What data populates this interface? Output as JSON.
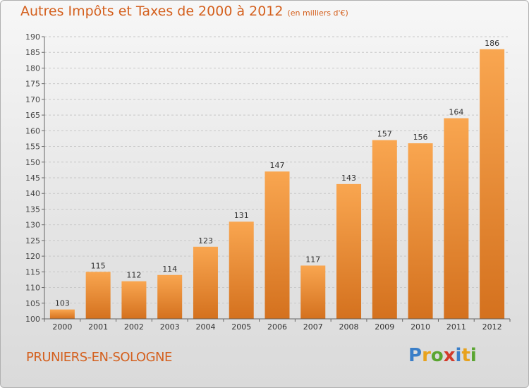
{
  "title": "Autres Impôts et Taxes de 2000 à 2012",
  "title_unit": "(en milliers d'€)",
  "commune": "PRUNIERS-EN-SOLOGNE",
  "brand": {
    "letters": [
      "P",
      "r",
      "o",
      "x",
      "i",
      "t",
      "i"
    ],
    "colors": [
      "#3a7ec8",
      "#e8a21d",
      "#5aa531",
      "#d33a2a",
      "#3a7ec8",
      "#e8a21d",
      "#5aa531"
    ]
  },
  "colors": {
    "accent": "#d4601e",
    "bar_top": "#f7a24c",
    "bar_bottom": "#d4711e"
  },
  "chart_data": {
    "type": "bar",
    "categories": [
      "2000",
      "2001",
      "2002",
      "2003",
      "2004",
      "2005",
      "2006",
      "2007",
      "2008",
      "2009",
      "2010",
      "2011",
      "2012"
    ],
    "values": [
      103,
      115,
      112,
      114,
      123,
      131,
      147,
      117,
      143,
      157,
      156,
      164,
      186
    ],
    "title": "Autres Impôts et Taxes de 2000 à 2012",
    "ylim": [
      100,
      190
    ],
    "yticks": [
      100,
      105,
      110,
      115,
      120,
      125,
      130,
      135,
      140,
      145,
      150,
      155,
      160,
      165,
      170,
      175,
      180,
      185,
      190
    ],
    "grid": "horizontal dashed"
  }
}
